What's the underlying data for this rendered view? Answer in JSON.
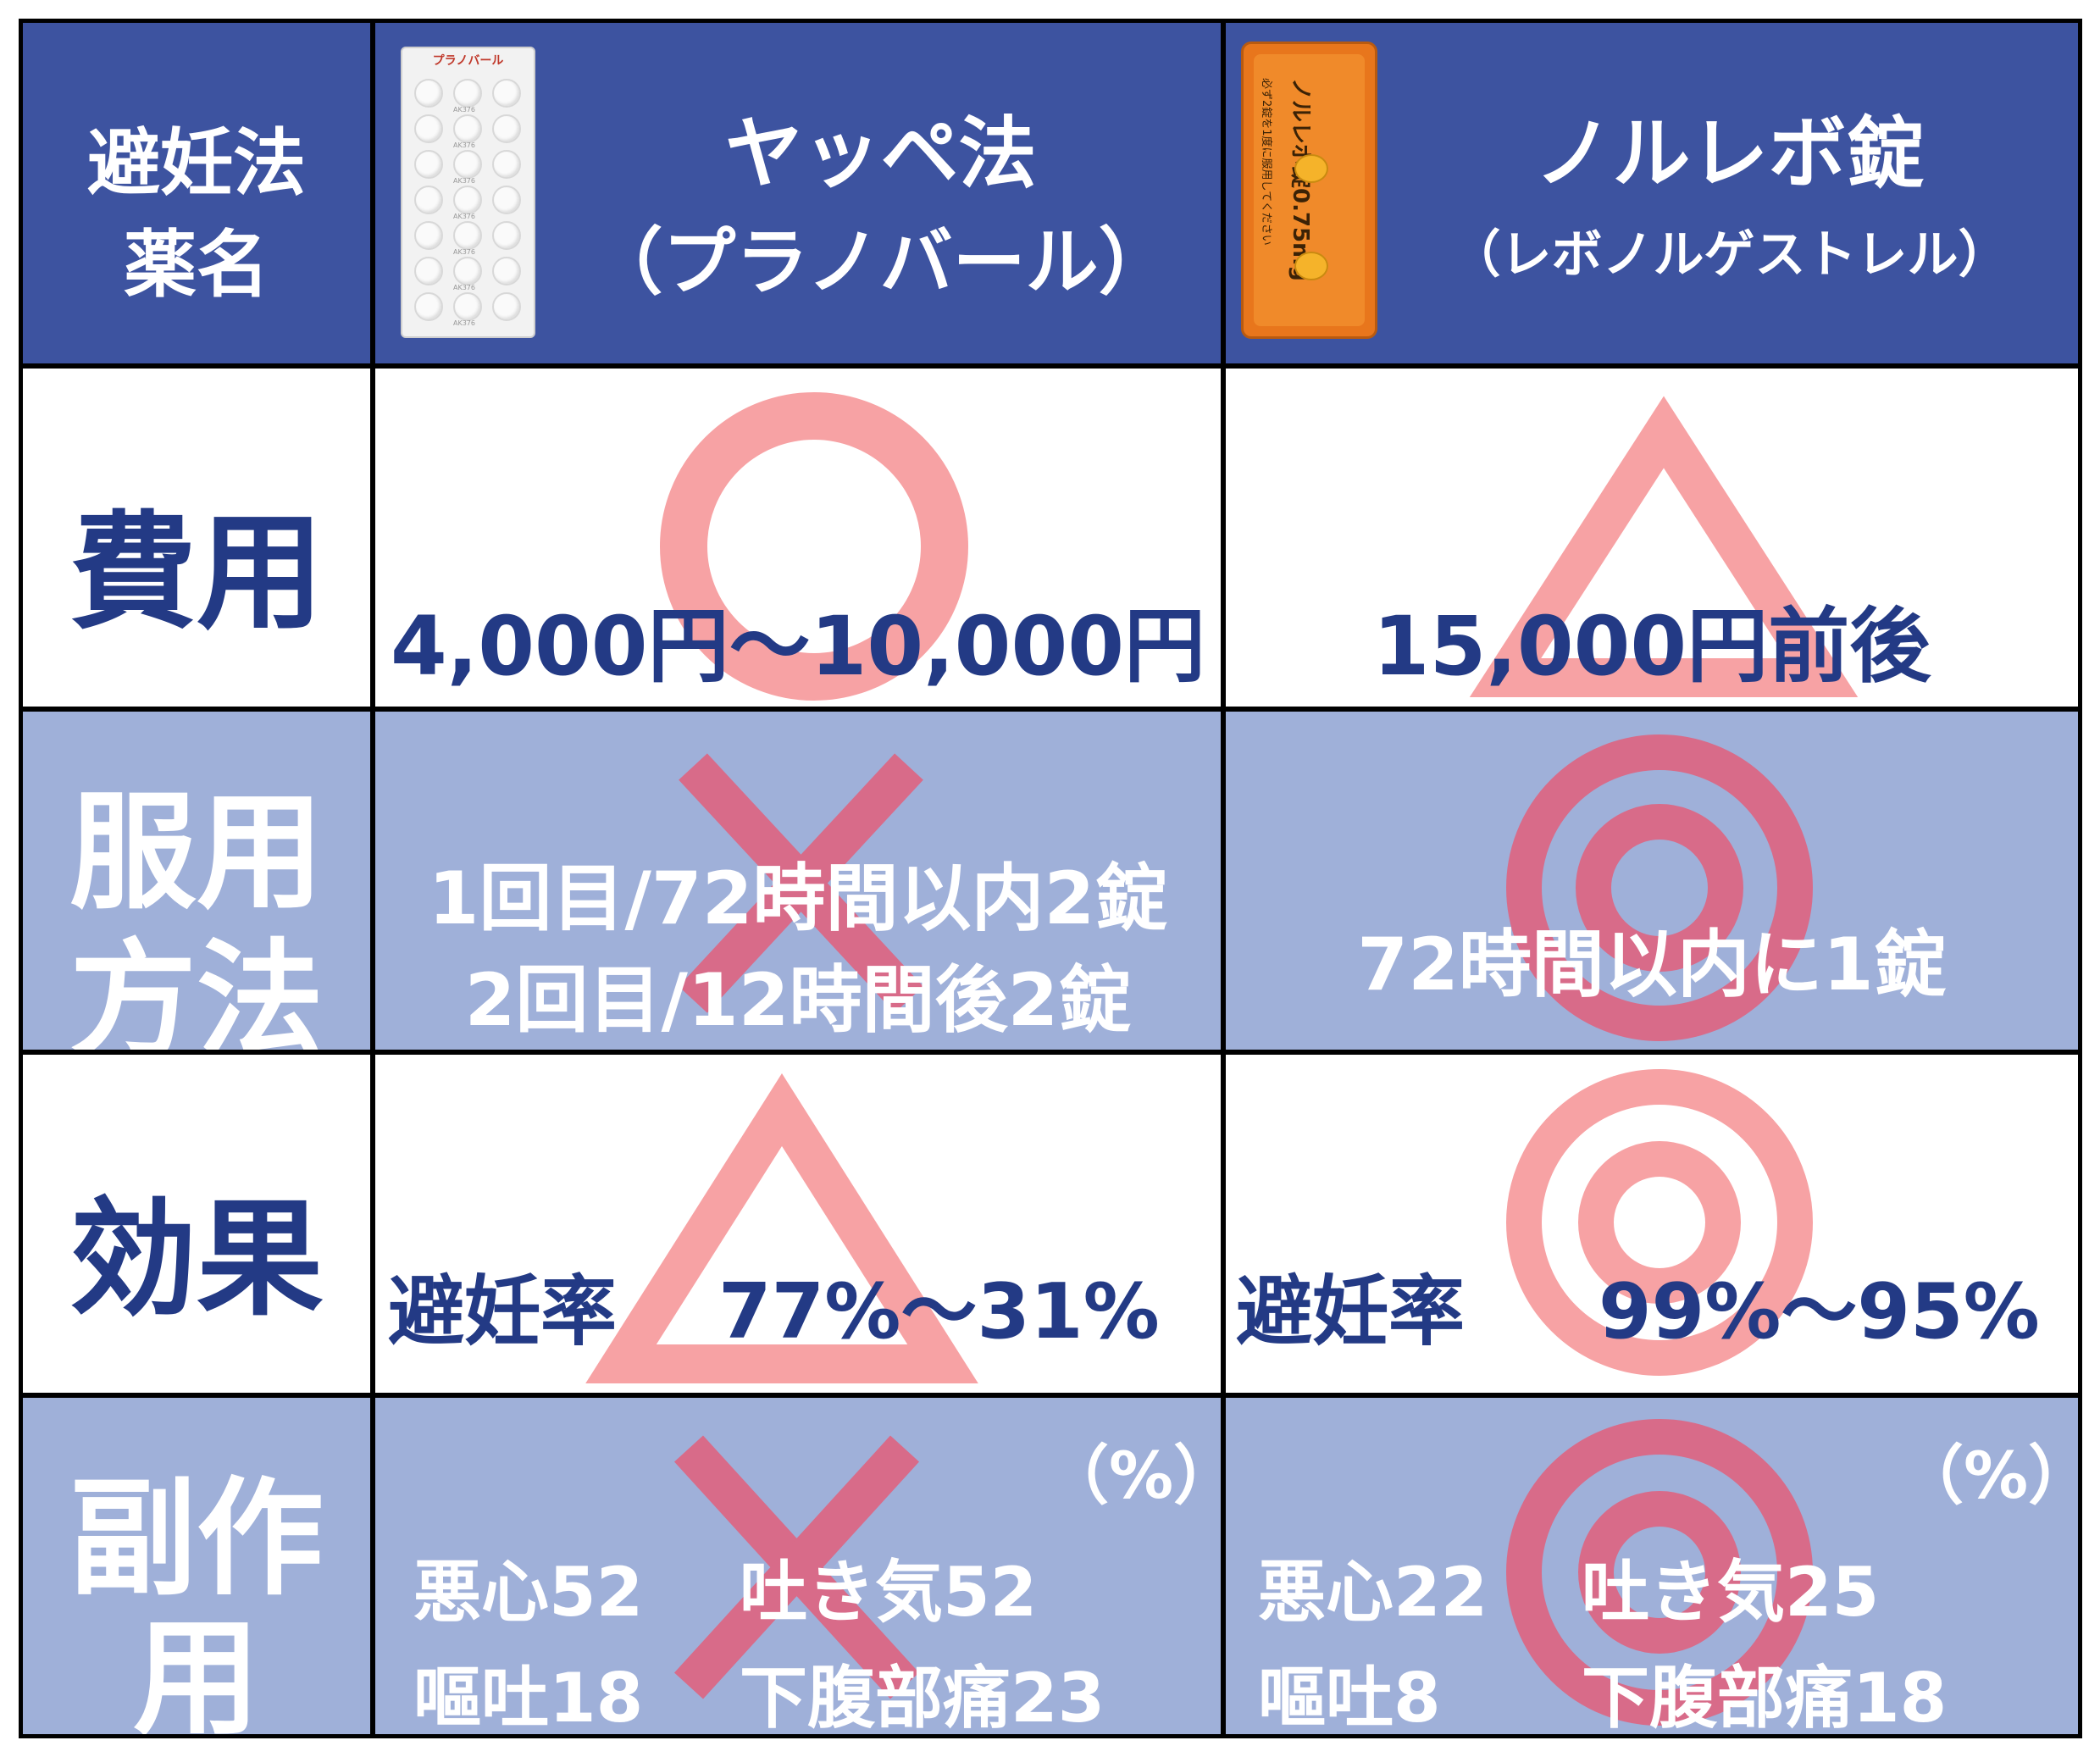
{
  "header": {
    "row_label": [
      "避妊法",
      "薬名"
    ],
    "col1_name": "ヤッペ法",
    "col1_sub": "（プラノバール）",
    "col2_name": "ノルレボ錠",
    "col2_sub": "（レボノルゲストレル）",
    "col1_pack_text": "プラノバール",
    "col1_pill_code": "AK376",
    "col2_pack_text": "ノルレボ錠0.75mg",
    "col2_pack_note": "必ず2錠を1度に服用してください"
  },
  "rows": {
    "cost": {
      "label": "費用",
      "col1_text": "4,000円～10,000円",
      "col1_rating": "circle",
      "col2_text": "15,000円前後",
      "col2_rating": "triangle"
    },
    "dosage": {
      "label": [
        "服用",
        "方法"
      ],
      "col1_lines": [
        "1回目/72時間以内2錠",
        "2回目/12時間後2錠"
      ],
      "col1_rating": "cross",
      "col2_text": "72時間以内に1錠",
      "col2_rating": "double-circle"
    },
    "effect": {
      "label": "効果",
      "col1_label": "避妊率",
      "col1_value": "77%～31%",
      "col1_rating": "triangle",
      "col2_label": "避妊率",
      "col2_value": "99%～95%",
      "col2_rating": "double-circle"
    },
    "side_effects": {
      "label": [
        "副作",
        "用"
      ],
      "unit": "（%）",
      "col1_items": [
        "悪心52",
        "吐き気52",
        "嘔吐18",
        "下腹部痛23"
      ],
      "col1_rating": "cross",
      "col2_items": [
        "悪心22",
        "吐き気25",
        "嘔吐8",
        "下腹部痛18"
      ],
      "col2_rating": "double-circle"
    }
  },
  "colors": {
    "header_bg": "#3d53a0",
    "light_row_bg": "#9fb0d9",
    "navy_text": "#233a85",
    "pink_symbol": "#f7a2a4",
    "rose_symbol": "#d86b89"
  }
}
